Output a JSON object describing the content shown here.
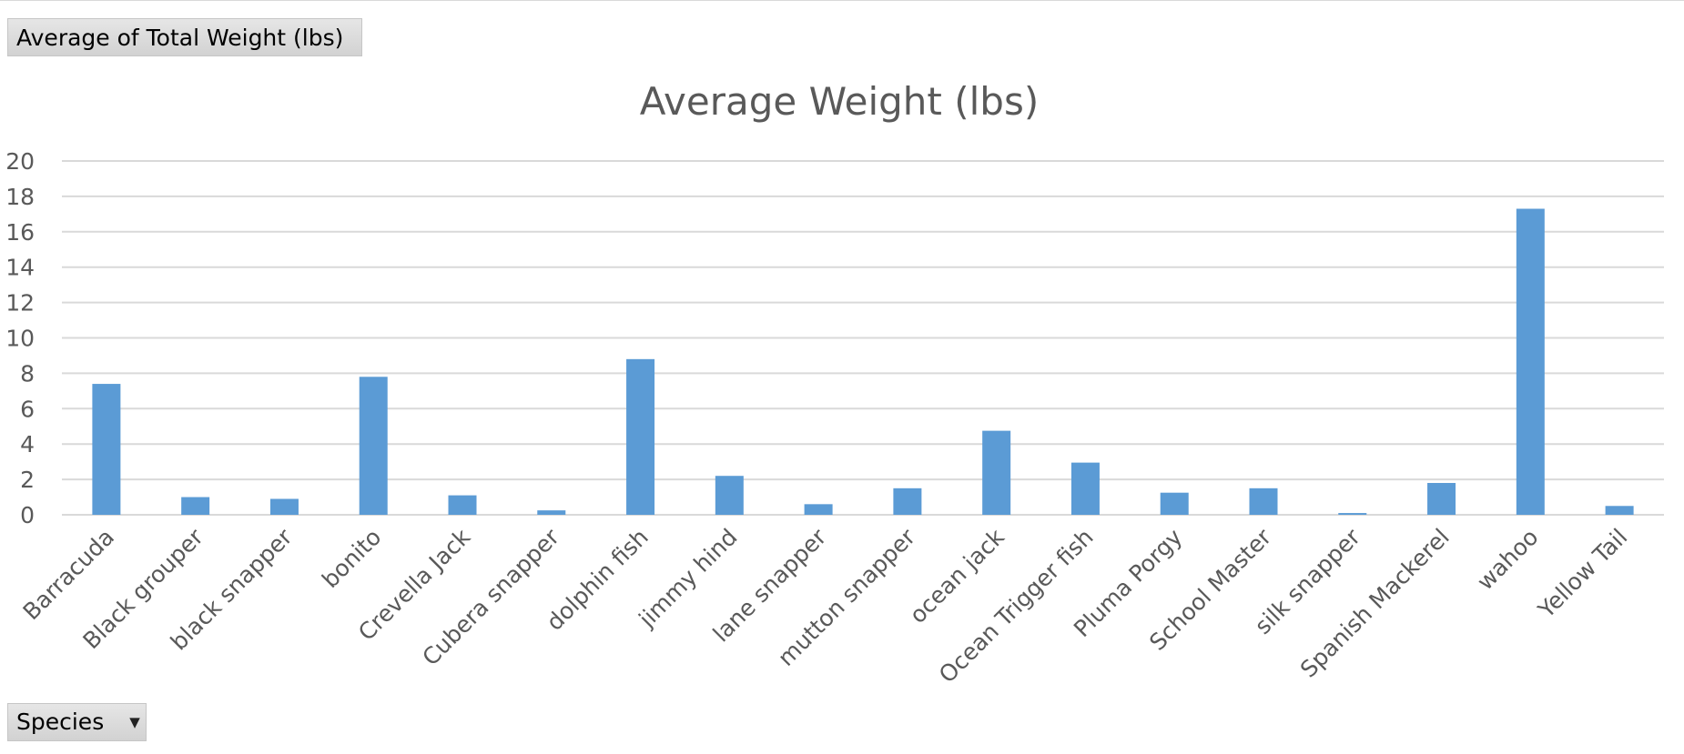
{
  "pivot": {
    "value_field_label": "Average of Total Weight (lbs)",
    "axis_field_label": "Species",
    "axis_field_caret": "▼"
  },
  "colors": {
    "bar": "#5b9bd5",
    "grid": "#d9d9d9",
    "text": "#595959"
  },
  "chart_data": {
    "type": "bar",
    "title": "Average Weight (lbs)",
    "xlabel": "",
    "ylabel": "",
    "ylim": [
      0,
      20
    ],
    "yticks": [
      0,
      2,
      4,
      6,
      8,
      10,
      12,
      14,
      16,
      18,
      20
    ],
    "grid": true,
    "legend": "none",
    "categories": [
      "Barracuda",
      "Black grouper",
      "black snapper",
      "bonito",
      "Crevella Jack",
      "Cubera snapper",
      "dolphin fish",
      "jimmy hind",
      "lane snapper",
      "mutton snapper",
      "ocean jack",
      "Ocean Trigger fish",
      "Pluma Porgy",
      "School Master",
      "silk snapper",
      "Spanish Mackerel",
      "wahoo",
      "Yellow Tail"
    ],
    "values": [
      7.4,
      1.0,
      0.9,
      7.8,
      1.1,
      0.25,
      8.8,
      2.2,
      0.6,
      1.5,
      4.75,
      2.95,
      1.25,
      1.5,
      0.1,
      1.8,
      17.3,
      0.5
    ]
  }
}
